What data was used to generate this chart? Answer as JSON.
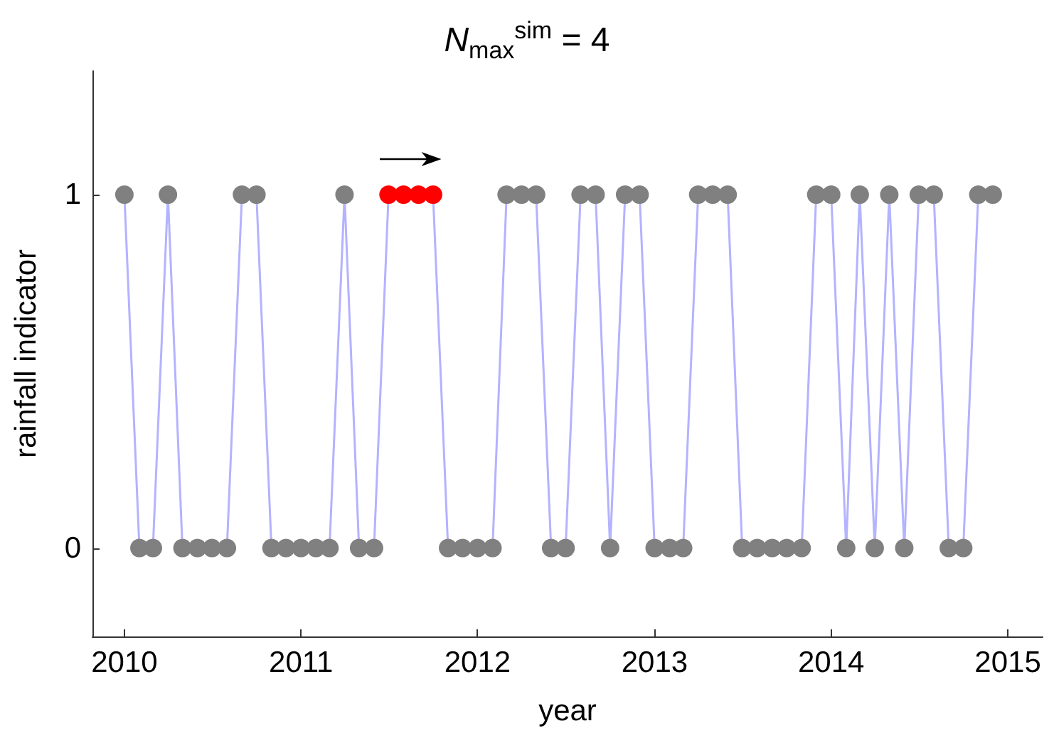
{
  "chart_data": {
    "type": "line",
    "title": "N$_{max}$$^{sim}$ = 4",
    "xlabel": "year",
    "ylabel": "rainfall indicator",
    "x": [
      "2010-01",
      "2010-02",
      "2010-03",
      "2010-04",
      "2010-05",
      "2010-06",
      "2010-07",
      "2010-08",
      "2010-09",
      "2010-10",
      "2010-11",
      "2010-12",
      "2011-01",
      "2011-02",
      "2011-03",
      "2011-04",
      "2011-05",
      "2011-06",
      "2011-07",
      "2011-08",
      "2011-09",
      "2011-10",
      "2011-11",
      "2011-12",
      "2012-01",
      "2012-02",
      "2012-03",
      "2012-04",
      "2012-05",
      "2012-06",
      "2012-07",
      "2012-08",
      "2012-09",
      "2012-10",
      "2012-11",
      "2012-12",
      "2013-01",
      "2013-02",
      "2013-03",
      "2013-04",
      "2013-05",
      "2013-06",
      "2013-07",
      "2013-08",
      "2013-09",
      "2013-10",
      "2013-11",
      "2013-12",
      "2014-01",
      "2014-02",
      "2014-03",
      "2014-04",
      "2014-05",
      "2014-06",
      "2014-07",
      "2014-08",
      "2014-09",
      "2014-10",
      "2014-11",
      "2014-12"
    ],
    "series": [
      {
        "color": "#b3b3ff",
        "colors": [
          "#808080",
          "#808080",
          "#808080",
          "#808080",
          "#808080",
          "#808080",
          "#808080",
          "#808080",
          "#808080",
          "#808080",
          "#808080",
          "#808080",
          "#808080",
          "#808080",
          "#808080",
          "#808080",
          "#808080",
          "#808080",
          "#ff0000",
          "#ff0000",
          "#ff0000",
          "#ff0000",
          "#808080",
          "#808080",
          "#808080",
          "#808080",
          "#808080",
          "#808080",
          "#808080",
          "#808080",
          "#808080",
          "#808080",
          "#808080",
          "#808080",
          "#808080",
          "#808080",
          "#808080",
          "#808080",
          "#808080",
          "#808080",
          "#808080",
          "#808080",
          "#808080",
          "#808080",
          "#808080",
          "#808080",
          "#808080",
          "#808080",
          "#808080",
          "#808080",
          "#808080",
          "#808080",
          "#808080",
          "#808080",
          "#808080",
          "#808080",
          "#808080",
          "#808080",
          "#808080",
          "#808080"
        ],
        "values": [
          1,
          0,
          0,
          1,
          0,
          0,
          0,
          0,
          1,
          1,
          0,
          0,
          0,
          0,
          0,
          1,
          0,
          0,
          1,
          1,
          1,
          1,
          0,
          0,
          0,
          0,
          1,
          1,
          1,
          0,
          0,
          1,
          1,
          0,
          1,
          1,
          0,
          0,
          0,
          1,
          1,
          1,
          0,
          0,
          0,
          0,
          0,
          1,
          1,
          0,
          1,
          0,
          1,
          0,
          1,
          1,
          0,
          0,
          1,
          1
        ]
      }
    ],
    "marker": "circle",
    "grid": false,
    "xlim": [
      "2009-10-27",
      "2015-03-14"
    ],
    "xticks": [
      "2010",
      "2011",
      "2012",
      "2013",
      "2014",
      "2015"
    ],
    "ylim": [
      -0.25,
      1.35
    ],
    "yticks": [
      0,
      1
    ]
  }
}
